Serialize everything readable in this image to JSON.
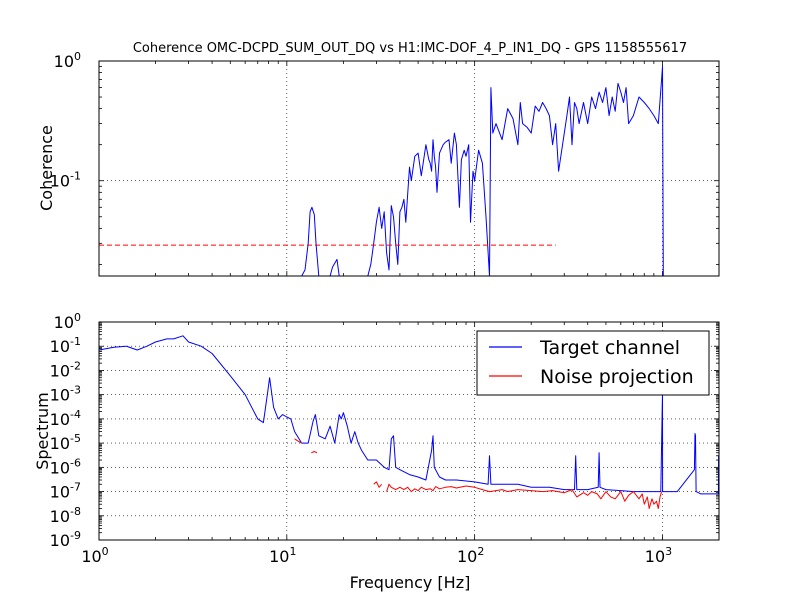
{
  "chart_data": [
    {
      "type": "line",
      "title": "Coherence OMC-DCPD_SUM_OUT_DQ vs H1:IMC-DOF_4_P_IN1_DQ - GPS 1158555617",
      "xlabel": "",
      "ylabel": "Coherence",
      "xscale": "log",
      "yscale": "log",
      "xlim": [
        1,
        2000
      ],
      "ylim": [
        0.016,
        1
      ],
      "grid": true,
      "ytick_labels": [
        {
          "base": "10",
          "exp": "0",
          "value": 1
        },
        {
          "base": "10",
          "exp": "-1",
          "value": 0.1
        }
      ],
      "colors": {
        "coherence": "#0000ff",
        "threshold": "#ff0000"
      },
      "series": [
        {
          "style": "solid",
          "x": [
            1.0,
            1.05,
            12.0,
            12.5,
            13.0,
            13.3,
            13.6,
            14.0,
            14.3,
            14.8,
            17.0,
            17.5,
            18.5,
            19.0,
            27.0,
            28.0,
            29.0,
            30.0,
            31.0,
            32.0,
            33.0,
            34.0,
            35.0,
            36.0,
            37.0,
            38.0,
            39.0,
            40.0,
            41.0,
            42.0,
            43.0,
            45.0,
            46.0,
            48.0,
            50.0,
            52.0,
            55.0,
            57.0,
            58.0,
            59.0,
            60.0,
            61.0,
            62.0,
            63.0,
            65.0,
            68.0,
            70.0,
            73.0,
            75.0,
            78.0,
            80.0,
            83.0,
            85.0,
            88.0,
            90.0,
            93.0,
            95.0,
            98.0,
            100.0,
            105.0,
            110.0,
            115.0,
            120.0,
            122.0,
            125.0,
            130.0,
            140.0,
            150.0,
            160.0,
            170.0,
            175.0,
            180.0,
            190.0,
            200.0,
            210.0,
            220.0,
            230.0,
            240.0,
            250.0,
            260.0,
            270.0,
            280.0,
            300.0,
            310.0,
            320.0,
            330.0,
            340.0,
            350.0,
            360.0,
            380.0,
            400.0,
            420.0,
            440.0,
            460.0,
            480.0,
            500.0,
            520.0,
            540.0,
            560.0,
            580.0,
            600.0,
            620.0,
            640.0,
            660.0,
            700.0,
            750.0,
            800.0,
            850.0,
            900.0,
            950.0,
            990.0,
            1000.0,
            1010.0
          ],
          "y": [
            0.016,
            0.016,
            0.016,
            0.018,
            0.03,
            0.055,
            0.06,
            0.052,
            0.03,
            0.016,
            0.016,
            0.019,
            0.022,
            0.016,
            0.016,
            0.02,
            0.03,
            0.045,
            0.06,
            0.04,
            0.055,
            0.025,
            0.018,
            0.062,
            0.05,
            0.03,
            0.02,
            0.055,
            0.06,
            0.07,
            0.045,
            0.13,
            0.1,
            0.16,
            0.17,
            0.11,
            0.2,
            0.15,
            0.14,
            0.12,
            0.22,
            0.16,
            0.13,
            0.08,
            0.17,
            0.2,
            0.21,
            0.22,
            0.14,
            0.25,
            0.2,
            0.06,
            0.15,
            0.18,
            0.16,
            0.2,
            0.045,
            0.12,
            0.1,
            0.18,
            0.14,
            0.05,
            0.016,
            0.6,
            0.25,
            0.3,
            0.22,
            0.4,
            0.33,
            0.2,
            0.45,
            0.3,
            0.28,
            0.25,
            0.42,
            0.38,
            0.45,
            0.4,
            0.35,
            0.2,
            0.3,
            0.12,
            0.25,
            0.35,
            0.5,
            0.2,
            0.45,
            0.4,
            0.3,
            0.45,
            0.3,
            0.5,
            0.4,
            0.55,
            0.45,
            0.6,
            0.35,
            0.5,
            0.38,
            0.65,
            0.55,
            0.45,
            0.6,
            0.3,
            0.35,
            0.5,
            0.45,
            0.4,
            0.35,
            0.3,
            0.7,
            0.9,
            0.016
          ]
        },
        {
          "style": "dashed",
          "x": [
            1,
            270
          ],
          "y": [
            0.029,
            0.029
          ]
        }
      ]
    },
    {
      "type": "line",
      "title": "",
      "xlabel": "Frequency [Hz]",
      "ylabel": "Spectrum",
      "xscale": "log",
      "yscale": "log",
      "xlim": [
        1,
        2000
      ],
      "ylim": [
        1e-09,
        1
      ],
      "grid": true,
      "legend_position": "top-right",
      "xtick_labels": [
        {
          "base": "10",
          "exp": "0",
          "value": 1
        },
        {
          "base": "10",
          "exp": "1",
          "value": 10
        },
        {
          "base": "10",
          "exp": "2",
          "value": 100
        },
        {
          "base": "10",
          "exp": "3",
          "value": 1000
        }
      ],
      "ytick_labels": [
        {
          "base": "10",
          "exp": "0",
          "value": 1
        },
        {
          "base": "10",
          "exp": "-1",
          "value": 0.1
        },
        {
          "base": "10",
          "exp": "-2",
          "value": 0.01
        },
        {
          "base": "10",
          "exp": "-3",
          "value": 0.001
        },
        {
          "base": "10",
          "exp": "-4",
          "value": 0.0001
        },
        {
          "base": "10",
          "exp": "-5",
          "value": 1e-05
        },
        {
          "base": "10",
          "exp": "-6",
          "value": 1e-06
        },
        {
          "base": "10",
          "exp": "-7",
          "value": 1e-07
        },
        {
          "base": "10",
          "exp": "-8",
          "value": 1e-08
        },
        {
          "base": "10",
          "exp": "-9",
          "value": 1e-09
        }
      ],
      "series": [
        {
          "name": "Target channel",
          "color": "#0000ff",
          "x": [
            1.0,
            1.2,
            1.4,
            1.6,
            1.8,
            2.0,
            2.3,
            2.5,
            2.8,
            3.0,
            3.5,
            4.0,
            5.0,
            6.0,
            7.0,
            7.5,
            7.9,
            8.1,
            8.5,
            9.0,
            9.5,
            10.0,
            10.5,
            11.0,
            12.0,
            13.0,
            13.8,
            14.2,
            14.8,
            16.0,
            17.0,
            18.0,
            19.0,
            19.5,
            20.0,
            21.0,
            22.0,
            23.0,
            24.0,
            25.0,
            27.0,
            30.0,
            33.0,
            35.0,
            36.0,
            37.0,
            38.0,
            40.0,
            45.0,
            50.0,
            55.0,
            59.0,
            60.0,
            61.0,
            65.0,
            70.0,
            80.0,
            100.0,
            118.0,
            120.0,
            122.0,
            150.0,
            170.0,
            200.0,
            250.0,
            300.0,
            340.0,
            345.0,
            350.0,
            400.0,
            455.0,
            460.0,
            465.0,
            500.0,
            600.0,
            700.0,
            800.0,
            900.0,
            980.0,
            998.0,
            1000.0,
            1002.0,
            1050.0,
            1200.0,
            1480.0,
            1490.0,
            1500.0,
            1510.0,
            1600.0,
            1800.0,
            1985.0,
            1990.0,
            1995.0,
            2000.0
          ],
          "y": [
            0.07,
            0.09,
            0.1,
            0.07,
            0.1,
            0.15,
            0.2,
            0.2,
            0.27,
            0.15,
            0.1,
            0.05,
            0.006,
            0.001,
            0.0001,
            7e-05,
            0.0012,
            0.005,
            0.0003,
            0.0001,
            0.00015,
            0.00012,
            0.0001,
            3e-05,
            1e-05,
            1e-05,
            8e-05,
            0.00015,
            2e-05,
            1.5e-05,
            5e-05,
            1e-05,
            0.00015,
            0.0001,
            0.00018,
            5e-05,
            1e-05,
            3e-05,
            1e-05,
            5e-06,
            2e-06,
            2e-06,
            1e-06,
            8e-07,
            1.5e-05,
            2e-05,
            1e-06,
            8e-07,
            5e-07,
            4e-07,
            3e-07,
            5e-06,
            2e-05,
            1e-06,
            4e-07,
            3e-07,
            3e-07,
            2.5e-07,
            2e-07,
            3e-06,
            2e-07,
            2e-07,
            2e-07,
            1.5e-07,
            1.5e-07,
            1.2e-07,
            1.2e-07,
            3e-06,
            1.2e-07,
            1.2e-07,
            1.5e-07,
            4e-06,
            1.5e-07,
            1.2e-07,
            1.1e-07,
            1e-07,
            1e-07,
            1e-07,
            1e-07,
            0.0005,
            0.001,
            1e-07,
            1e-07,
            1e-07,
            8e-07,
            2.5e-05,
            2e-05,
            1e-07,
            8e-08,
            8e-08,
            8e-08,
            3e-06,
            2e-06,
            1e-07
          ]
        },
        {
          "name": "Noise projection",
          "color": "#ff0000",
          "x": [
            11.0,
            11.5,
            12.0,
            13.0,
            13.5,
            14.0,
            14.5,
            28.0,
            29.0,
            30.0,
            31.0,
            32.0,
            33.0,
            34.0,
            35.0,
            36.0,
            38.0,
            40.0,
            42.0,
            44.0,
            46.0,
            48.0,
            50.0,
            52.0,
            55.0,
            58.0,
            60.0,
            62.0,
            65.0,
            70.0,
            75.0,
            80.0,
            90.0,
            100.0,
            110.0,
            120.0,
            130.0,
            140.0,
            150.0,
            170.0,
            200.0,
            230.0,
            260.0,
            300.0,
            330.0,
            350.0,
            380.0,
            400.0,
            420.0,
            450.0,
            470.0,
            500.0,
            530.0,
            560.0,
            600.0,
            630.0,
            660.0,
            700.0,
            750.0,
            780.0,
            800.0,
            830.0,
            850.0,
            880.0,
            900.0,
            930.0,
            950.0,
            970.0,
            990.0
          ],
          "y": [
            1.5e-05,
            1.2e-05,
            1e-05,
            null,
            4e-06,
            4.5e-06,
            4e-06,
            null,
            2e-07,
            2.5e-07,
            1.5e-07,
            2e-07,
            null,
            1e-07,
            2e-07,
            1.5e-07,
            1.2e-07,
            1.5e-07,
            1.2e-07,
            1.5e-07,
            1e-07,
            1.3e-07,
            1.1e-07,
            1.5e-07,
            1.2e-07,
            1.3e-07,
            1.1e-07,
            1.6e-07,
            1.3e-07,
            1.5e-07,
            1.6e-07,
            1.4e-07,
            1.7e-07,
            1.5e-07,
            1.2e-07,
            1e-07,
            1.1e-07,
            1.2e-07,
            1e-07,
            1.2e-07,
            1.1e-07,
            1e-07,
            1.1e-07,
            9e-08,
            1.2e-07,
            6e-08,
            9e-08,
            7e-08,
            1e-07,
            8e-08,
            5e-08,
            1e-07,
            6e-08,
            5e-08,
            1e-07,
            4e-08,
            7e-08,
            1e-07,
            5e-08,
            8e-08,
            3e-08,
            6e-08,
            2e-08,
            5e-08,
            3e-08,
            4e-08,
            2e-08,
            6e-08,
            1e-07
          ]
        }
      ]
    }
  ]
}
